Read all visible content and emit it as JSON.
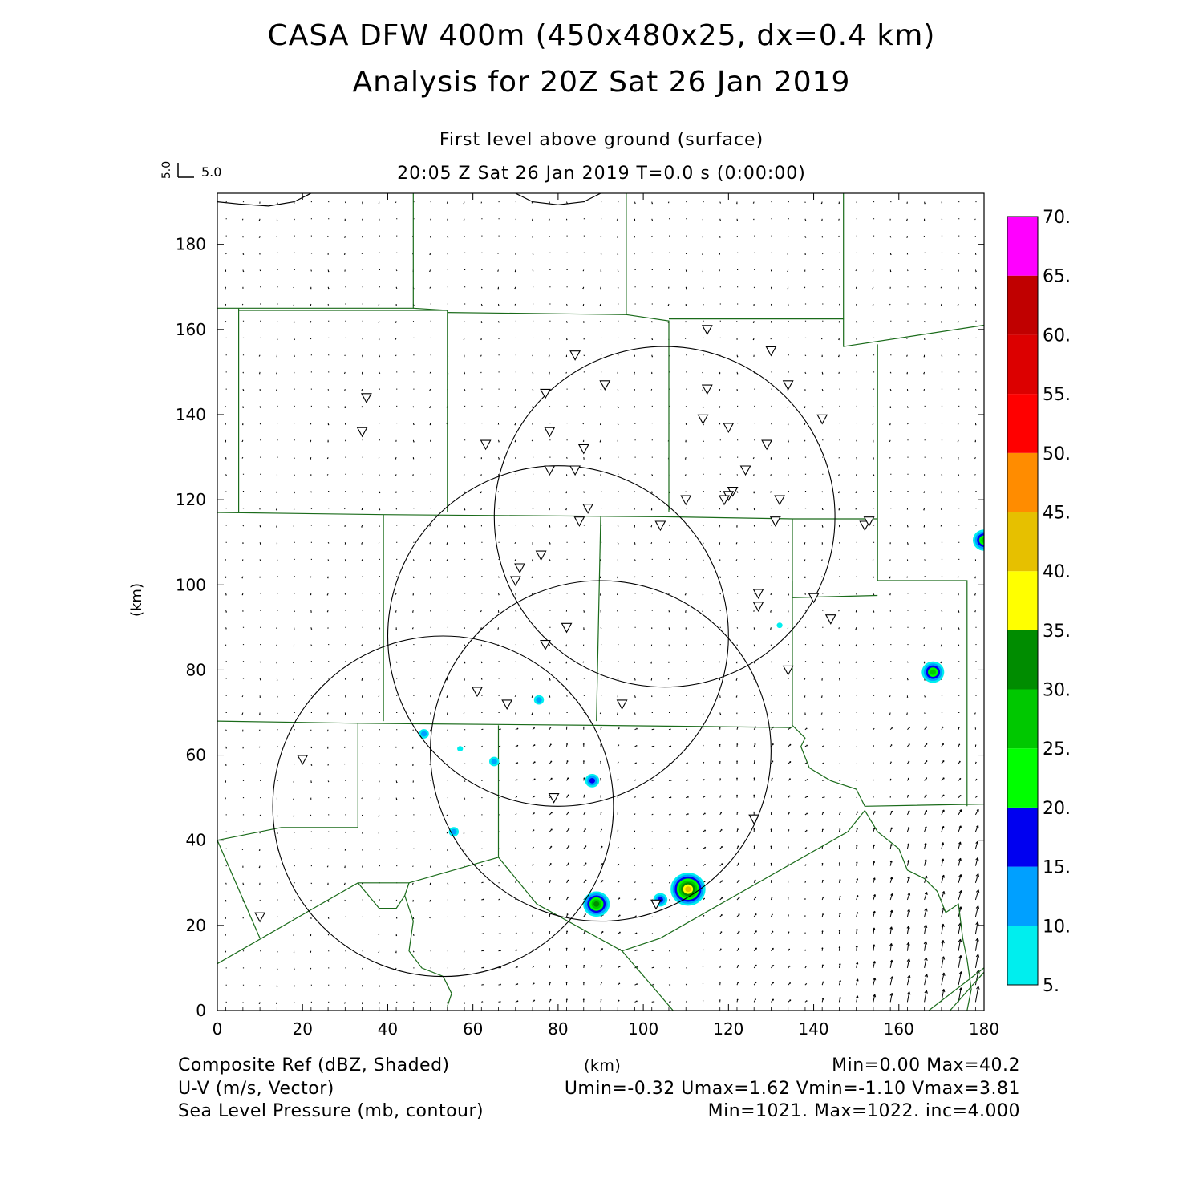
{
  "title": {
    "line1": "CASA DFW 400m (450x480x25, dx=0.4 km)",
    "line2": "Analysis for 20Z Sat 26 Jan 2019"
  },
  "subtitle": {
    "level": "First level above ground (surface)",
    "time": "20:05 Z Sat 26 Jan 2019    T=0.0 s (0:00:00)"
  },
  "vector_key": {
    "x_label": "5.0",
    "y_label": "5.0"
  },
  "axes": {
    "xlabel": "(km)",
    "ylabel": "(km)",
    "xlim": [
      0,
      180
    ],
    "ylim": [
      0,
      192
    ],
    "xticks": [
      0,
      20,
      40,
      60,
      80,
      100,
      120,
      140,
      160,
      180
    ],
    "yticks": [
      0,
      20,
      40,
      60,
      80,
      100,
      120,
      140,
      160,
      180
    ]
  },
  "colorbar": {
    "labels": [
      "5.",
      "10.",
      "15.",
      "20.",
      "25.",
      "30.",
      "35.",
      "40.",
      "45.",
      "50.",
      "55.",
      "60.",
      "65.",
      "70."
    ],
    "colors": [
      "#00eeee",
      "#00a0ff",
      "#0000f0",
      "#00ff00",
      "#00c800",
      "#008c00",
      "#ffff00",
      "#e6c000",
      "#ff8c00",
      "#ff0000",
      "#dc0000",
      "#c00000",
      "#ff00ff"
    ]
  },
  "footer": {
    "field1": "Composite Ref (dBZ, Shaded)",
    "field2": "U-V (m/s, Vector)",
    "field3": "Sea Level Pressure (mb, contour)",
    "units": "(km)",
    "stats1": "Min=0.00 Max=40.2",
    "stats2": "Umin=-0.32 Umax=1.62 Vmin=-1.10 Vmax=3.81",
    "stats3": "Min=1021. Max=1022. inc=4.000"
  },
  "radars": [
    {
      "cx": 53,
      "cy": 48,
      "r": 40
    },
    {
      "cx": 90,
      "cy": 61,
      "r": 40
    },
    {
      "cx": 80,
      "cy": 88,
      "r": 40
    },
    {
      "cx": 105,
      "cy": 116,
      "r": 40
    }
  ],
  "stations": [
    [
      35,
      144
    ],
    [
      34,
      136
    ],
    [
      63,
      133
    ],
    [
      77,
      145
    ],
    [
      78,
      136
    ],
    [
      84,
      154
    ],
    [
      91,
      147
    ],
    [
      86,
      132
    ],
    [
      78,
      127
    ],
    [
      84,
      127
    ],
    [
      85,
      115
    ],
    [
      87,
      118
    ],
    [
      71,
      104
    ],
    [
      70,
      101
    ],
    [
      76,
      107
    ],
    [
      104,
      114
    ],
    [
      115,
      160
    ],
    [
      130,
      155
    ],
    [
      134,
      147
    ],
    [
      115,
      146
    ],
    [
      114,
      139
    ],
    [
      120,
      137
    ],
    [
      129,
      133
    ],
    [
      124,
      127
    ],
    [
      142,
      139
    ],
    [
      121,
      122
    ],
    [
      120,
      121
    ],
    [
      119,
      120
    ],
    [
      110,
      120
    ],
    [
      132,
      120
    ],
    [
      131,
      115
    ],
    [
      152,
      114
    ],
    [
      153,
      115
    ],
    [
      127,
      98
    ],
    [
      127,
      95
    ],
    [
      140,
      97
    ],
    [
      144,
      92
    ],
    [
      134,
      80
    ],
    [
      82,
      90
    ],
    [
      77,
      86
    ],
    [
      61,
      75
    ],
    [
      68,
      72
    ],
    [
      95,
      72
    ],
    [
      20,
      59
    ],
    [
      79,
      50
    ],
    [
      126,
      45
    ],
    [
      10,
      22
    ],
    [
      103,
      25
    ]
  ],
  "reflectivity_cells": [
    {
      "x": 48.5,
      "y": 65,
      "dbz": 12
    },
    {
      "x": 75.5,
      "y": 73,
      "dbz": 10
    },
    {
      "x": 65,
      "y": 58.5,
      "dbz": 10
    },
    {
      "x": 57,
      "y": 61.5,
      "dbz": 8
    },
    {
      "x": 88,
      "y": 54,
      "dbz": 16
    },
    {
      "x": 55.5,
      "y": 42,
      "dbz": 10
    },
    {
      "x": 89,
      "y": 25,
      "dbz": 30
    },
    {
      "x": 104,
      "y": 26,
      "dbz": 16
    },
    {
      "x": 110.5,
      "y": 28.5,
      "dbz": 40
    },
    {
      "x": 168,
      "y": 79.5,
      "dbz": 28
    },
    {
      "x": 180,
      "y": 110.5,
      "dbz": 28
    },
    {
      "x": 132,
      "y": 90.5,
      "dbz": 8
    }
  ],
  "boundaries": [
    [
      [
        0,
        165
      ],
      [
        46,
        165
      ],
      [
        46,
        192
      ]
    ],
    [
      [
        46,
        165
      ],
      [
        54,
        164.5
      ]
    ],
    [
      [
        5,
        165
      ],
      [
        5,
        117
      ]
    ],
    [
      [
        5,
        164.5
      ],
      [
        54,
        164.5
      ],
      [
        54,
        117
      ]
    ],
    [
      [
        54,
        164
      ],
      [
        96,
        163.5
      ],
      [
        96,
        192
      ]
    ],
    [
      [
        96,
        163.5
      ],
      [
        106,
        162
      ],
      [
        106,
        117
      ]
    ],
    [
      [
        106,
        162.5
      ],
      [
        147,
        162.5
      ],
      [
        147,
        192
      ]
    ],
    [
      [
        147,
        162.5
      ],
      [
        147,
        156
      ],
      [
        180,
        161
      ]
    ],
    [
      [
        0,
        117
      ],
      [
        39,
        116.5
      ],
      [
        105,
        116
      ],
      [
        135,
        115.5
      ],
      [
        155,
        115.5
      ]
    ],
    [
      [
        155,
        156.5
      ],
      [
        155,
        101
      ],
      [
        176,
        101
      ],
      [
        176,
        48
      ]
    ],
    [
      [
        39,
        116.5
      ],
      [
        39,
        68
      ]
    ],
    [
      [
        90,
        116
      ],
      [
        89,
        68
      ]
    ],
    [
      [
        135,
        115.5
      ],
      [
        135,
        97
      ],
      [
        155,
        97.5
      ]
    ],
    [
      [
        0,
        68
      ],
      [
        33,
        67.5
      ],
      [
        89,
        67
      ],
      [
        135,
        66.5
      ]
    ],
    [
      [
        135,
        101
      ],
      [
        135,
        67
      ],
      [
        138,
        64
      ],
      [
        137,
        62
      ],
      [
        139,
        57
      ],
      [
        144,
        54
      ],
      [
        150,
        52
      ],
      [
        152,
        48
      ],
      [
        180,
        48.5
      ]
    ],
    [
      [
        33,
        67.5
      ],
      [
        33,
        43
      ],
      [
        15,
        43
      ],
      [
        0,
        40
      ]
    ],
    [
      [
        0,
        40
      ],
      [
        10,
        17
      ]
    ],
    [
      [
        66,
        67
      ],
      [
        66,
        36
      ],
      [
        45,
        30
      ],
      [
        33,
        30
      ],
      [
        0,
        11
      ]
    ],
    [
      [
        33,
        30
      ],
      [
        38,
        24
      ],
      [
        42,
        24
      ],
      [
        44,
        27
      ],
      [
        45,
        30
      ]
    ],
    [
      [
        44,
        27
      ],
      [
        46,
        21
      ],
      [
        45,
        14
      ],
      [
        48,
        10
      ],
      [
        53,
        8
      ],
      [
        55,
        4
      ],
      [
        54,
        1
      ]
    ],
    [
      [
        66,
        36
      ],
      [
        75,
        25
      ],
      [
        95,
        14
      ],
      [
        107,
        0
      ]
    ],
    [
      [
        95,
        14
      ],
      [
        104,
        17
      ],
      [
        148,
        42
      ],
      [
        152,
        47
      ]
    ],
    [
      [
        152,
        47
      ],
      [
        155,
        42
      ],
      [
        160,
        38
      ],
      [
        162,
        33
      ],
      [
        166,
        31
      ],
      [
        169,
        28
      ],
      [
        171,
        23
      ],
      [
        174,
        25
      ],
      [
        175,
        17
      ],
      [
        176,
        12
      ],
      [
        177,
        5
      ],
      [
        176,
        0
      ]
    ],
    [
      [
        167,
        0
      ],
      [
        180,
        10
      ]
    ],
    [
      [
        172,
        0
      ],
      [
        180,
        9
      ]
    ]
  ],
  "isobars": [
    [
      [
        0,
        190
      ],
      [
        5,
        189.5
      ],
      [
        12,
        189
      ],
      [
        18,
        190
      ],
      [
        22,
        192
      ]
    ],
    [
      [
        70,
        192
      ],
      [
        74,
        190
      ],
      [
        80,
        189.3
      ],
      [
        86,
        190
      ],
      [
        90,
        192
      ]
    ]
  ]
}
